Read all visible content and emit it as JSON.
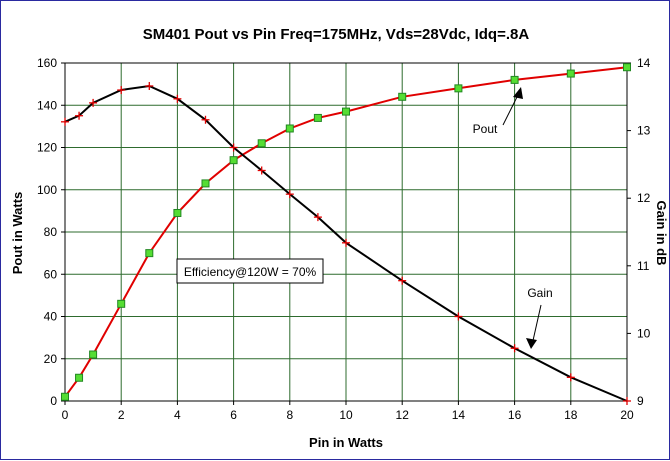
{
  "chart_data": {
    "type": "line",
    "title": "SM401 Pout vs Pin Freq=175MHz, Vds=28Vdc, Idq=.8A",
    "xlabel": "Pin in Watts",
    "ylabel": "Pout in Watts",
    "y2label": "Gain in dB",
    "xlim": [
      0,
      20
    ],
    "ylim": [
      0,
      160
    ],
    "y2lim": [
      9,
      14
    ],
    "x_ticks": [
      0,
      2,
      4,
      6,
      8,
      10,
      12,
      14,
      16,
      18,
      20
    ],
    "y_ticks": [
      0,
      20,
      40,
      60,
      80,
      100,
      120,
      140,
      160
    ],
    "y2_ticks": [
      9,
      10,
      11,
      12,
      13,
      14
    ],
    "grid": true,
    "annotation": "Efficiency@120W = 70%",
    "series": [
      {
        "name": "Pout",
        "axis": "left",
        "color": "#e00000",
        "marker": "square",
        "marker_color": "#55dd33",
        "points": [
          [
            0,
            2
          ],
          [
            0.5,
            11
          ],
          [
            1,
            22
          ],
          [
            2,
            46
          ],
          [
            3,
            70
          ],
          [
            4,
            89
          ],
          [
            5,
            103
          ],
          [
            6,
            114
          ],
          [
            7,
            122
          ],
          [
            8,
            129
          ],
          [
            9,
            134
          ],
          [
            10,
            137
          ],
          [
            12,
            144
          ],
          [
            14,
            148
          ],
          [
            16,
            152
          ],
          [
            18,
            155
          ],
          [
            20,
            158
          ]
        ]
      },
      {
        "name": "Gain",
        "axis": "right",
        "color": "#000000",
        "marker": "plus",
        "marker_color": "#e00000",
        "points": [
          [
            0,
            13.13
          ],
          [
            0.5,
            13.22
          ],
          [
            1,
            13.41
          ],
          [
            2,
            13.6
          ],
          [
            3,
            13.66
          ],
          [
            4,
            13.47
          ],
          [
            5,
            13.16
          ],
          [
            6,
            12.75
          ],
          [
            7,
            12.41
          ],
          [
            8,
            12.06
          ],
          [
            9,
            11.72
          ],
          [
            10,
            11.34
          ],
          [
            12,
            10.78
          ],
          [
            14,
            10.25
          ],
          [
            16,
            9.78
          ],
          [
            18,
            9.35
          ],
          [
            20,
            9.0
          ]
        ]
      }
    ]
  }
}
